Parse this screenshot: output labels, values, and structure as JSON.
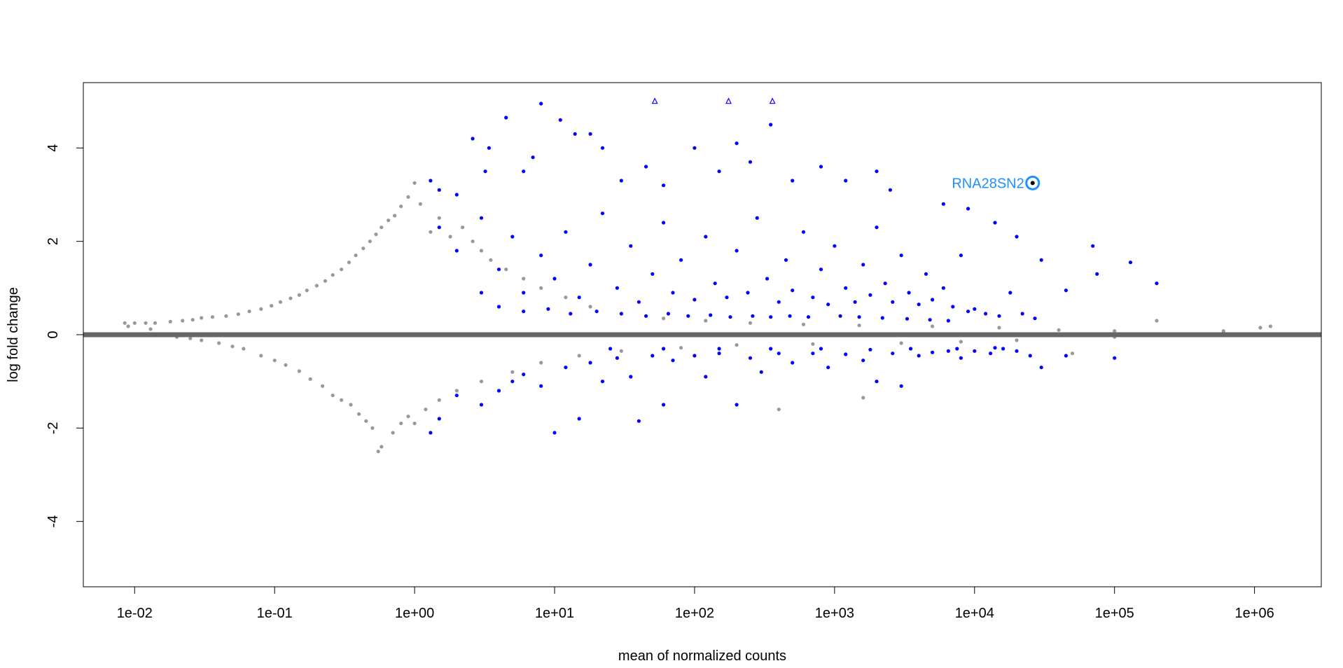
{
  "chart_data": {
    "type": "scatter",
    "title": "",
    "xlabel": "mean of normalized counts",
    "ylabel": "log fold change",
    "x_scale": "log10",
    "xlim": [
      0.0043,
      3000000
    ],
    "ylim": [
      -5.4,
      5.4
    ],
    "x_ticks": [
      {
        "value": 0.01,
        "label": "1e-02"
      },
      {
        "value": 0.1,
        "label": "1e-01"
      },
      {
        "value": 1,
        "label": "1e+00"
      },
      {
        "value": 10,
        "label": "1e+01"
      },
      {
        "value": 100,
        "label": "1e+02"
      },
      {
        "value": 1000,
        "label": "1e+03"
      },
      {
        "value": 10000,
        "label": "1e+04"
      },
      {
        "value": 100000,
        "label": "1e+05"
      },
      {
        "value": 1000000,
        "label": "1e+06"
      }
    ],
    "y_ticks": [
      {
        "value": -4,
        "label": "-4"
      },
      {
        "value": -2,
        "label": "-2"
      },
      {
        "value": 0,
        "label": "0"
      },
      {
        "value": 2,
        "label": "2"
      },
      {
        "value": 4,
        "label": "4"
      }
    ],
    "grid": false,
    "legend": "none",
    "reference_line": {
      "y": 0,
      "color": "#666666"
    },
    "series": [
      {
        "color": "#999999",
        "points": [
          [
            0.0085,
            0.25
          ],
          [
            0.01,
            0.25
          ],
          [
            0.012,
            0.25
          ],
          [
            0.014,
            0.25
          ],
          [
            0.018,
            0.28
          ],
          [
            0.022,
            0.3
          ],
          [
            0.026,
            0.32
          ],
          [
            0.03,
            0.36
          ],
          [
            0.036,
            0.38
          ],
          [
            0.045,
            0.4
          ],
          [
            0.055,
            0.44
          ],
          [
            0.066,
            0.5
          ],
          [
            0.08,
            0.55
          ],
          [
            0.095,
            0.62
          ],
          [
            0.11,
            0.7
          ],
          [
            0.13,
            0.78
          ],
          [
            0.15,
            0.85
          ],
          [
            0.17,
            0.95
          ],
          [
            0.2,
            1.05
          ],
          [
            0.23,
            1.15
          ],
          [
            0.26,
            1.28
          ],
          [
            0.3,
            1.4
          ],
          [
            0.34,
            1.55
          ],
          [
            0.38,
            1.7
          ],
          [
            0.43,
            1.85
          ],
          [
            0.48,
            2.0
          ],
          [
            0.53,
            2.15
          ],
          [
            0.58,
            2.3
          ],
          [
            0.65,
            2.45
          ],
          [
            0.72,
            2.55
          ],
          [
            0.8,
            2.75
          ],
          [
            0.9,
            2.95
          ],
          [
            1.0,
            3.25
          ],
          [
            1.1,
            2.8
          ],
          [
            1.3,
            2.2
          ],
          [
            1.5,
            2.5
          ],
          [
            1.8,
            2.1
          ],
          [
            2.2,
            2.3
          ],
          [
            2.6,
            2.0
          ],
          [
            3.0,
            1.8
          ],
          [
            3.5,
            1.6
          ],
          [
            4.5,
            1.4
          ],
          [
            6,
            1.2
          ],
          [
            8,
            1.0
          ],
          [
            12,
            0.8
          ],
          [
            18,
            0.6
          ],
          [
            30,
            0.45
          ],
          [
            60,
            0.35
          ],
          [
            120,
            0.3
          ],
          [
            250,
            0.25
          ],
          [
            600,
            0.22
          ],
          [
            1500,
            0.2
          ],
          [
            5000,
            0.18
          ],
          [
            15000,
            0.15
          ],
          [
            40000,
            0.1
          ],
          [
            100000,
            0.08
          ],
          [
            200000,
            0.3
          ],
          [
            600000,
            0.08
          ],
          [
            1100000,
            0.15
          ],
          [
            1300000,
            0.18
          ],
          [
            0.009,
            0.18
          ],
          [
            0.013,
            0.12
          ],
          [
            0.02,
            -0.05
          ],
          [
            0.025,
            -0.08
          ],
          [
            0.03,
            -0.12
          ],
          [
            0.04,
            -0.18
          ],
          [
            0.05,
            -0.25
          ],
          [
            0.06,
            -0.3
          ],
          [
            0.08,
            -0.45
          ],
          [
            0.1,
            -0.55
          ],
          [
            0.12,
            -0.65
          ],
          [
            0.15,
            -0.78
          ],
          [
            0.18,
            -0.95
          ],
          [
            0.22,
            -1.1
          ],
          [
            0.26,
            -1.3
          ],
          [
            0.3,
            -1.4
          ],
          [
            0.35,
            -1.5
          ],
          [
            0.4,
            -1.7
          ],
          [
            0.45,
            -1.85
          ],
          [
            0.5,
            -2.0
          ],
          [
            0.55,
            -2.5
          ],
          [
            0.58,
            -2.4
          ],
          [
            0.7,
            -2.1
          ],
          [
            0.8,
            -1.9
          ],
          [
            0.9,
            -1.75
          ],
          [
            1.0,
            -1.9
          ],
          [
            1.2,
            -1.6
          ],
          [
            1.5,
            -1.4
          ],
          [
            2,
            -1.2
          ],
          [
            3,
            -1.0
          ],
          [
            5,
            -0.8
          ],
          [
            8,
            -0.6
          ],
          [
            15,
            -0.45
          ],
          [
            30,
            -0.35
          ],
          [
            80,
            -0.28
          ],
          [
            200,
            -0.22
          ],
          [
            400,
            -1.6
          ],
          [
            700,
            -0.2
          ],
          [
            1600,
            -1.35
          ],
          [
            3000,
            -0.18
          ],
          [
            8000,
            -0.15
          ],
          [
            20000,
            -0.12
          ],
          [
            50000,
            -0.4
          ],
          [
            100000,
            -0.05
          ]
        ]
      },
      {
        "color": "#0000ff",
        "points": [
          [
            1.3,
            3.3
          ],
          [
            1.5,
            3.1
          ],
          [
            2.0,
            3.0
          ],
          [
            2.6,
            4.2
          ],
          [
            3.2,
            3.5
          ],
          [
            3.4,
            4.0
          ],
          [
            4.5,
            4.65
          ],
          [
            6,
            3.5
          ],
          [
            7,
            3.8
          ],
          [
            8,
            4.95
          ],
          [
            11,
            4.6
          ],
          [
            14,
            4.3
          ],
          [
            18,
            4.3
          ],
          [
            22,
            4.0
          ],
          [
            30,
            3.3
          ],
          [
            45,
            3.6
          ],
          [
            60,
            3.2
          ],
          [
            100,
            4.0
          ],
          [
            150,
            3.5
          ],
          [
            200,
            4.1
          ],
          [
            250,
            3.7
          ],
          [
            350,
            4.5
          ],
          [
            500,
            3.3
          ],
          [
            800,
            3.6
          ],
          [
            1200,
            3.3
          ],
          [
            2000,
            3.5
          ],
          [
            2500,
            3.1
          ],
          [
            6000,
            2.8
          ],
          [
            9000,
            2.7
          ],
          [
            14000,
            2.4
          ],
          [
            20000,
            2.1
          ],
          [
            30000,
            1.6
          ],
          [
            45000,
            0.95
          ],
          [
            70000,
            1.9
          ],
          [
            75000,
            1.3
          ],
          [
            130000,
            1.55
          ],
          [
            200000,
            1.1
          ],
          [
            1.5,
            2.3
          ],
          [
            2,
            1.8
          ],
          [
            3,
            2.5
          ],
          [
            4,
            1.4
          ],
          [
            5,
            2.1
          ],
          [
            6,
            0.9
          ],
          [
            8,
            1.7
          ],
          [
            10,
            1.2
          ],
          [
            12,
            2.2
          ],
          [
            15,
            0.8
          ],
          [
            18,
            1.5
          ],
          [
            22,
            2.6
          ],
          [
            28,
            1.0
          ],
          [
            35,
            1.9
          ],
          [
            40,
            0.7
          ],
          [
            50,
            1.3
          ],
          [
            60,
            2.4
          ],
          [
            70,
            0.9
          ],
          [
            80,
            1.6
          ],
          [
            100,
            0.75
          ],
          [
            120,
            2.1
          ],
          [
            140,
            1.1
          ],
          [
            170,
            0.8
          ],
          [
            200,
            1.8
          ],
          [
            240,
            0.9
          ],
          [
            280,
            2.5
          ],
          [
            330,
            1.2
          ],
          [
            400,
            0.7
          ],
          [
            450,
            1.6
          ],
          [
            500,
            0.95
          ],
          [
            600,
            2.2
          ],
          [
            700,
            0.8
          ],
          [
            800,
            1.4
          ],
          [
            900,
            0.65
          ],
          [
            1000,
            1.9
          ],
          [
            1200,
            1.0
          ],
          [
            1400,
            0.7
          ],
          [
            1600,
            1.5
          ],
          [
            1800,
            0.85
          ],
          [
            2000,
            2.3
          ],
          [
            2300,
            1.1
          ],
          [
            2600,
            0.7
          ],
          [
            3000,
            1.7
          ],
          [
            3400,
            0.9
          ],
          [
            4000,
            0.65
          ],
          [
            4500,
            1.3
          ],
          [
            5000,
            0.75
          ],
          [
            6000,
            1.0
          ],
          [
            7000,
            0.6
          ],
          [
            8000,
            1.7
          ],
          [
            9000,
            0.5
          ],
          [
            10000,
            0.55
          ],
          [
            12000,
            0.45
          ],
          [
            15000,
            0.4
          ],
          [
            18000,
            0.9
          ],
          [
            22000,
            0.45
          ],
          [
            27000,
            0.35
          ],
          [
            3,
            0.9
          ],
          [
            4,
            0.6
          ],
          [
            6,
            0.5
          ],
          [
            9,
            0.55
          ],
          [
            13,
            0.45
          ],
          [
            20,
            0.5
          ],
          [
            30,
            0.45
          ],
          [
            45,
            0.4
          ],
          [
            65,
            0.45
          ],
          [
            90,
            0.4
          ],
          [
            130,
            0.42
          ],
          [
            180,
            0.38
          ],
          [
            260,
            0.4
          ],
          [
            350,
            0.38
          ],
          [
            480,
            0.4
          ],
          [
            650,
            0.38
          ],
          [
            1100,
            0.4
          ],
          [
            1500,
            0.38
          ],
          [
            2200,
            0.36
          ],
          [
            3300,
            0.34
          ],
          [
            4800,
            0.32
          ],
          [
            6500,
            0.3
          ],
          [
            1.3,
            -2.1
          ],
          [
            1.5,
            -1.8
          ],
          [
            2,
            -1.3
          ],
          [
            3,
            -1.5
          ],
          [
            4,
            -1.2
          ],
          [
            5,
            -1.0
          ],
          [
            6,
            -0.85
          ],
          [
            8,
            -1.1
          ],
          [
            10,
            -2.1
          ],
          [
            12,
            -0.7
          ],
          [
            15,
            -1.8
          ],
          [
            18,
            -0.6
          ],
          [
            22,
            -1.0
          ],
          [
            28,
            -0.5
          ],
          [
            35,
            -0.9
          ],
          [
            40,
            -1.85
          ],
          [
            50,
            -0.45
          ],
          [
            60,
            -1.5
          ],
          [
            70,
            -0.55
          ],
          [
            100,
            -0.45
          ],
          [
            120,
            -0.9
          ],
          [
            150,
            -0.4
          ],
          [
            200,
            -1.5
          ],
          [
            250,
            -0.5
          ],
          [
            300,
            -0.8
          ],
          [
            400,
            -0.4
          ],
          [
            500,
            -0.6
          ],
          [
            700,
            -0.4
          ],
          [
            900,
            -0.7
          ],
          [
            1200,
            -0.42
          ],
          [
            1600,
            -0.55
          ],
          [
            2000,
            -1.0
          ],
          [
            2600,
            -0.4
          ],
          [
            3000,
            -1.1
          ],
          [
            4000,
            -0.45
          ],
          [
            5000,
            -0.38
          ],
          [
            6500,
            -0.35
          ],
          [
            8000,
            -0.5
          ],
          [
            10000,
            -0.35
          ],
          [
            13000,
            -0.4
          ],
          [
            16000,
            -0.3
          ],
          [
            20000,
            -0.35
          ],
          [
            25000,
            -0.45
          ],
          [
            30000,
            -0.7
          ],
          [
            45000,
            -0.45
          ],
          [
            100000,
            -0.5
          ],
          [
            25,
            -0.3
          ],
          [
            60,
            -0.3
          ],
          [
            150,
            -0.3
          ],
          [
            350,
            -0.3
          ],
          [
            800,
            -0.3
          ],
          [
            1800,
            -0.32
          ],
          [
            3500,
            -0.3
          ],
          [
            7500,
            -0.3
          ],
          [
            14000,
            -0.28
          ]
        ]
      }
    ],
    "clipped_points": [
      {
        "x": 52,
        "y": 5.0
      },
      {
        "x": 175,
        "y": 5.0
      },
      {
        "x": 360,
        "y": 5.0
      }
    ],
    "clipped_color": "#0000ff",
    "highlight": {
      "x": 26000,
      "y": 3.25,
      "label": "RNA28SN2",
      "color": "#1e90ff"
    }
  }
}
